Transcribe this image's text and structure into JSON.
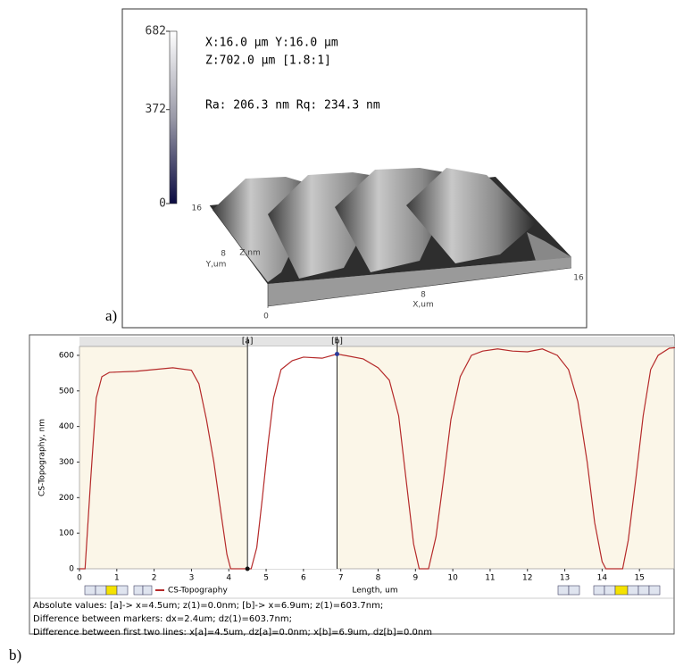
{
  "chart_data": [
    {
      "type": "surface",
      "label": "a)",
      "annotations": [
        "X:16.0 µm Y:16.0 µm",
        "Z:702.0 µm [1.8:1]",
        "Ra: 206.3 nm  Rq: 234.3 nm"
      ],
      "colorbar": {
        "lim": [
          0,
          682
        ],
        "ticks": [
          0,
          372,
          682
        ]
      },
      "xticks": [
        0,
        8,
        16
      ],
      "yticks": [
        8,
        16
      ],
      "xlabel": "X,um",
      "ylabel": "Y,um",
      "zlabel": "Z,nm"
    },
    {
      "type": "line",
      "label": "b)",
      "xlabel": "Length, um",
      "ylabel": "CS-Topography, nm",
      "xlim": [
        0,
        16
      ],
      "ylim": [
        0,
        625
      ],
      "xticks": [
        0,
        1,
        2,
        3,
        4,
        5,
        6,
        7,
        8,
        9,
        10,
        11,
        12,
        13,
        14,
        15
      ],
      "yticks": [
        0,
        100,
        200,
        300,
        400,
        500,
        600
      ],
      "x": [
        0,
        0.15,
        0.3,
        0.45,
        0.6,
        0.8,
        1.0,
        1.5,
        2.0,
        2.5,
        3.0,
        3.2,
        3.4,
        3.6,
        3.8,
        3.95,
        4.05,
        4.5,
        4.6,
        4.75,
        4.9,
        5.05,
        5.2,
        5.4,
        5.7,
        6.0,
        6.5,
        6.9,
        7.2,
        7.6,
        8.0,
        8.3,
        8.55,
        8.75,
        8.95,
        9.1,
        9.35,
        9.55,
        9.75,
        9.95,
        10.2,
        10.5,
        10.8,
        11.2,
        11.6,
        12.0,
        12.4,
        12.8,
        13.1,
        13.35,
        13.6,
        13.8,
        14.0,
        14.1,
        14.55,
        14.7,
        14.9,
        15.1,
        15.3,
        15.5,
        15.8,
        16.0
      ],
      "series": [
        {
          "name": "CS-Topography",
          "color": "#b52a2a",
          "values": [
            0,
            0,
            250,
            480,
            540,
            552,
            553,
            555,
            560,
            565,
            558,
            520,
            420,
            300,
            150,
            40,
            0,
            0,
            0,
            60,
            200,
            350,
            480,
            560,
            585,
            595,
            592,
            603.7,
            598,
            590,
            565,
            530,
            430,
            250,
            70,
            0,
            0,
            90,
            250,
            420,
            540,
            600,
            612,
            618,
            612,
            610,
            618,
            600,
            560,
            470,
            300,
            130,
            20,
            0,
            0,
            80,
            250,
            430,
            560,
            600,
            620,
            622
          ]
        }
      ],
      "markers": [
        {
          "label": "[a]",
          "x": 4.5,
          "y": 0
        },
        {
          "label": "[b]",
          "x": 6.9,
          "y": 603.7
        }
      ],
      "status_lines": [
        "Absolute values: [a]-> x=4.5um;  z(1)=0.0nm;    [b]-> x=6.9um;  z(1)=603.7nm;",
        "Difference between markers: dx=2.4um;  dz(1)=603.7nm;",
        "Difference between first two lines: x[a]=4.5um, dz[a]=0.0nm;   x[b]=6.9um, dz[b]=0.0nm"
      ]
    }
  ]
}
